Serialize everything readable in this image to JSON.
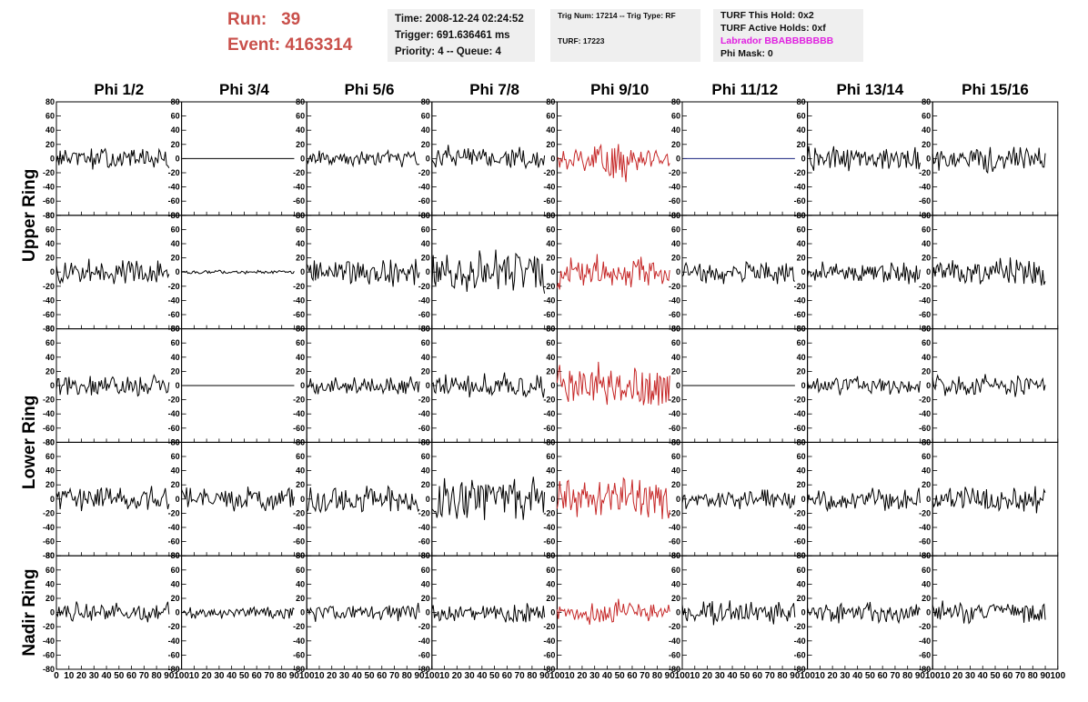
{
  "header": {
    "run_label": "Run:",
    "run_value": "39",
    "event_label": "Event:",
    "event_value": "4163314"
  },
  "info_panel": {
    "time": "Time: 2008-12-24 02:24:52",
    "trigger": "Trigger: 691.636461 ms",
    "priority": "Priority: 4 -- Queue: 4"
  },
  "trig_panel": {
    "trig": "Trig Num: 17214 -- Trig Type: RF",
    "turf": "TURF: 17223"
  },
  "turf_panel": {
    "this_hold": "TURF This Hold: 0x2",
    "active_holds": "TURF Active Holds: 0xf",
    "labrador": "Labrador BBABBBBBBB",
    "phi_mask": "Phi Mask: 0"
  },
  "colors": {
    "highlight": "#c62828",
    "flat": "#1a237e",
    "trace": "#000000",
    "title_red": "#c9504b",
    "labrador": "#e020e0"
  },
  "chart_data": {
    "type": "line",
    "columns": [
      "Phi 1/2",
      "Phi 3/4",
      "Phi 5/6",
      "Phi 7/8",
      "Phi 9/10",
      "Phi 11/12",
      "Phi 13/14",
      "Phi 15/16"
    ],
    "ring_labels": [
      "Upper Ring",
      "Lower Ring",
      "Nadir Ring"
    ],
    "ylim": [
      -80,
      80
    ],
    "xlim": [
      0,
      100
    ],
    "samples": 90,
    "y_ticks": [
      "80",
      "60",
      "40",
      "20",
      "0",
      "-20",
      "-40",
      "-60",
      "-80"
    ],
    "x_ticks": [
      "0",
      "10",
      "20",
      "30",
      "40",
      "50",
      "60",
      "70",
      "80",
      "90",
      "100"
    ],
    "traces": [
      {
        "row": 0,
        "col": 0,
        "amp": 17,
        "style": "black"
      },
      {
        "row": 0,
        "col": 1,
        "amp": 0,
        "style": "flat-black"
      },
      {
        "row": 0,
        "col": 2,
        "amp": 13,
        "style": "black"
      },
      {
        "row": 0,
        "col": 3,
        "amp": 20,
        "style": "black"
      },
      {
        "row": 0,
        "col": 4,
        "amp": 42,
        "style": "red",
        "burst": true
      },
      {
        "row": 0,
        "col": 5,
        "amp": 0,
        "style": "flat-blue"
      },
      {
        "row": 0,
        "col": 6,
        "amp": 20,
        "style": "black"
      },
      {
        "row": 0,
        "col": 7,
        "amp": 22,
        "style": "black"
      },
      {
        "row": 1,
        "col": 0,
        "amp": 20,
        "style": "black"
      },
      {
        "row": 1,
        "col": 1,
        "amp": 3,
        "style": "black"
      },
      {
        "row": 1,
        "col": 2,
        "amp": 22,
        "style": "black"
      },
      {
        "row": 1,
        "col": 3,
        "amp": 33,
        "style": "black"
      },
      {
        "row": 1,
        "col": 4,
        "amp": 28,
        "style": "red"
      },
      {
        "row": 1,
        "col": 5,
        "amp": 18,
        "style": "black"
      },
      {
        "row": 1,
        "col": 6,
        "amp": 18,
        "style": "black"
      },
      {
        "row": 1,
        "col": 7,
        "amp": 24,
        "style": "black"
      },
      {
        "row": 2,
        "col": 0,
        "amp": 17,
        "style": "black"
      },
      {
        "row": 2,
        "col": 1,
        "amp": 0,
        "style": "flat-black"
      },
      {
        "row": 2,
        "col": 2,
        "amp": 17,
        "style": "black"
      },
      {
        "row": 2,
        "col": 3,
        "amp": 20,
        "style": "black"
      },
      {
        "row": 2,
        "col": 4,
        "amp": 35,
        "style": "red"
      },
      {
        "row": 2,
        "col": 5,
        "amp": 0,
        "style": "flat-black"
      },
      {
        "row": 2,
        "col": 6,
        "amp": 15,
        "style": "black"
      },
      {
        "row": 2,
        "col": 7,
        "amp": 17,
        "style": "black"
      },
      {
        "row": 3,
        "col": 0,
        "amp": 20,
        "style": "black"
      },
      {
        "row": 3,
        "col": 1,
        "amp": 20,
        "style": "black"
      },
      {
        "row": 3,
        "col": 2,
        "amp": 22,
        "style": "black"
      },
      {
        "row": 3,
        "col": 3,
        "amp": 38,
        "style": "black"
      },
      {
        "row": 3,
        "col": 4,
        "amp": 33,
        "style": "red"
      },
      {
        "row": 3,
        "col": 5,
        "amp": 15,
        "style": "black"
      },
      {
        "row": 3,
        "col": 6,
        "amp": 18,
        "style": "black"
      },
      {
        "row": 3,
        "col": 7,
        "amp": 22,
        "style": "black"
      },
      {
        "row": 4,
        "col": 0,
        "amp": 17,
        "style": "black"
      },
      {
        "row": 4,
        "col": 1,
        "amp": 10,
        "style": "black"
      },
      {
        "row": 4,
        "col": 2,
        "amp": 15,
        "style": "black"
      },
      {
        "row": 4,
        "col": 3,
        "amp": 15,
        "style": "black"
      },
      {
        "row": 4,
        "col": 4,
        "amp": 33,
        "style": "red",
        "burst": true
      },
      {
        "row": 4,
        "col": 5,
        "amp": 20,
        "style": "black"
      },
      {
        "row": 4,
        "col": 6,
        "amp": 17,
        "style": "black"
      },
      {
        "row": 4,
        "col": 7,
        "amp": 17,
        "style": "black"
      }
    ]
  }
}
